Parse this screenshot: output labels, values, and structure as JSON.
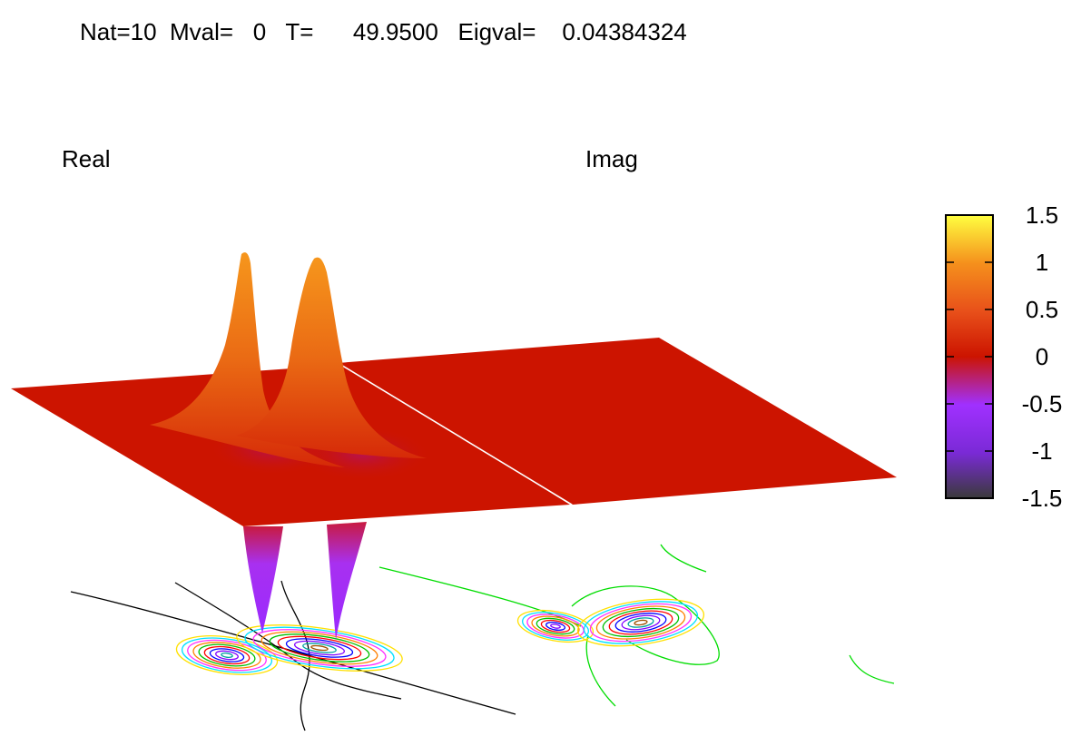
{
  "header": {
    "title": "Nat=10  Mval=   0   T=      49.9500   Eigval=    0.04384324"
  },
  "panels": [
    {
      "label": "Real"
    },
    {
      "label": "Imag"
    }
  ],
  "colorbar": {
    "ticks": [
      "1.5",
      "1",
      "0.5",
      "0",
      "-0.5",
      "-1",
      "-1.5"
    ],
    "range": [
      -1.5,
      1.5
    ],
    "palette": [
      "#3a3a3a",
      "#7a2ad6",
      "#a030ff",
      "#cc1400",
      "#e8501a",
      "#f5901c",
      "#ffff40"
    ]
  },
  "chart_data": {
    "type": "surface3d",
    "title": "Nat=10  Mval=   0   T=      49.9500   Eigval=    0.04384324",
    "panels": [
      "Real",
      "Imag"
    ],
    "zlim": [
      -1.5,
      1.5
    ],
    "features": {
      "real_peaks_max": 1.1,
      "real_troughs_min": -1.0,
      "imag_surface_value": 0
    },
    "contours_below": true
  }
}
